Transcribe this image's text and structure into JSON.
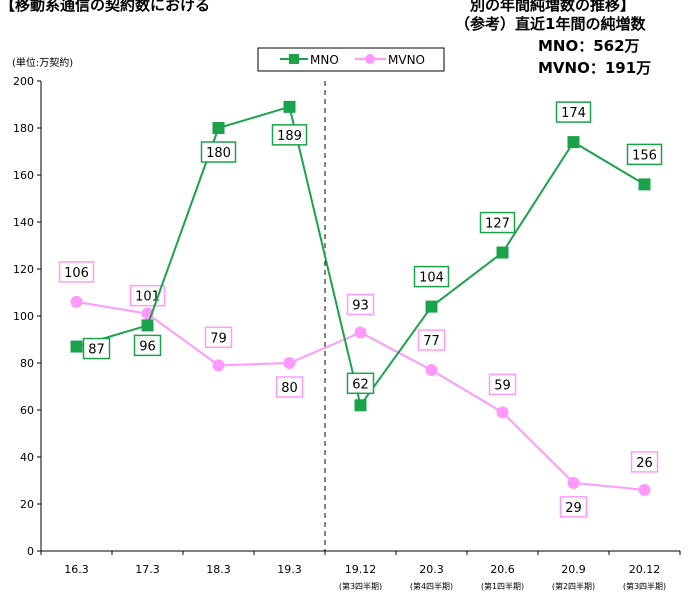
{
  "header": {
    "top_left": "【移動系通信の契約数における",
    "top_right": "別の年間純増数の推移】"
  },
  "reference": {
    "line1": "（参考）直近1年間の純増数",
    "line2": "MNO：562万",
    "line3": "MVNO：191万"
  },
  "colors": {
    "mno": "#1aa34a",
    "mvno": "#ff99ff",
    "axis": "#000000"
  },
  "chart_data": {
    "type": "line",
    "unit_label": "(単位:万契約)",
    "categories": [
      "16.3",
      "17.3",
      "18.3",
      "19.3",
      "19.12",
      "20.3",
      "20.6",
      "20.9",
      "20.12"
    ],
    "category_sublabels": [
      "",
      "",
      "",
      "",
      "(第3四半期)",
      "(第4四半期)",
      "(第1四半期)",
      "(第2四半期)",
      "(第3四半期)"
    ],
    "ylim": [
      0,
      200
    ],
    "yticks": [
      0,
      20,
      40,
      60,
      80,
      100,
      120,
      140,
      160,
      180,
      200
    ],
    "divider_after_index": 3,
    "legend_position": "top-center",
    "series": [
      {
        "name": "MNO",
        "marker": "square",
        "values": [
          87,
          96,
          180,
          189,
          62,
          104,
          127,
          174,
          156
        ]
      },
      {
        "name": "MVNO",
        "marker": "circle",
        "values": [
          106,
          101,
          79,
          80,
          93,
          77,
          59,
          29,
          26
        ]
      }
    ]
  }
}
